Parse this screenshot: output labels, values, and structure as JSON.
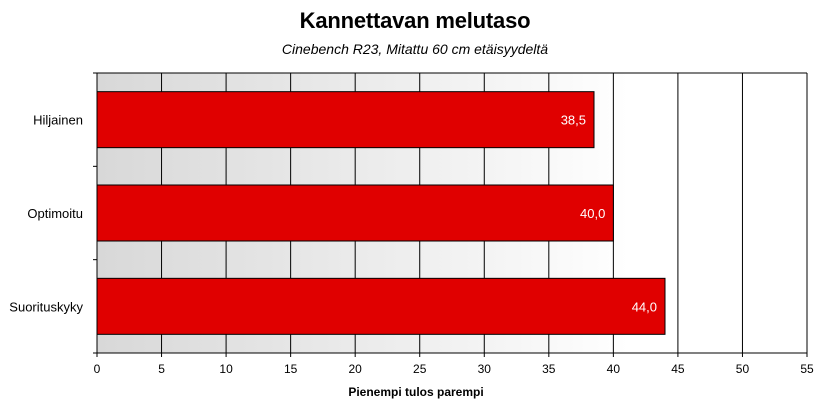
{
  "chart_data": {
    "type": "bar",
    "orientation": "horizontal",
    "title": "Kannettavan melutaso",
    "subtitle": "Cinebench R23, Mitattu 60 cm etäisyydeltä",
    "xlabel": "Pienempi tulos parempi",
    "ylabel": "",
    "categories": [
      "Hiljainen",
      "Optimoitu",
      "Suorituskyky"
    ],
    "values": [
      38.5,
      40.0,
      44.0
    ],
    "value_labels": [
      "38,5",
      "40,0",
      "44,0"
    ],
    "xlim": [
      0,
      55
    ],
    "xticks": [
      0,
      5,
      10,
      15,
      20,
      25,
      30,
      35,
      40,
      45,
      50,
      55
    ],
    "grid": true,
    "legend": "none",
    "bar_color": "#e00000",
    "plot_background": "gradient gray to white"
  }
}
